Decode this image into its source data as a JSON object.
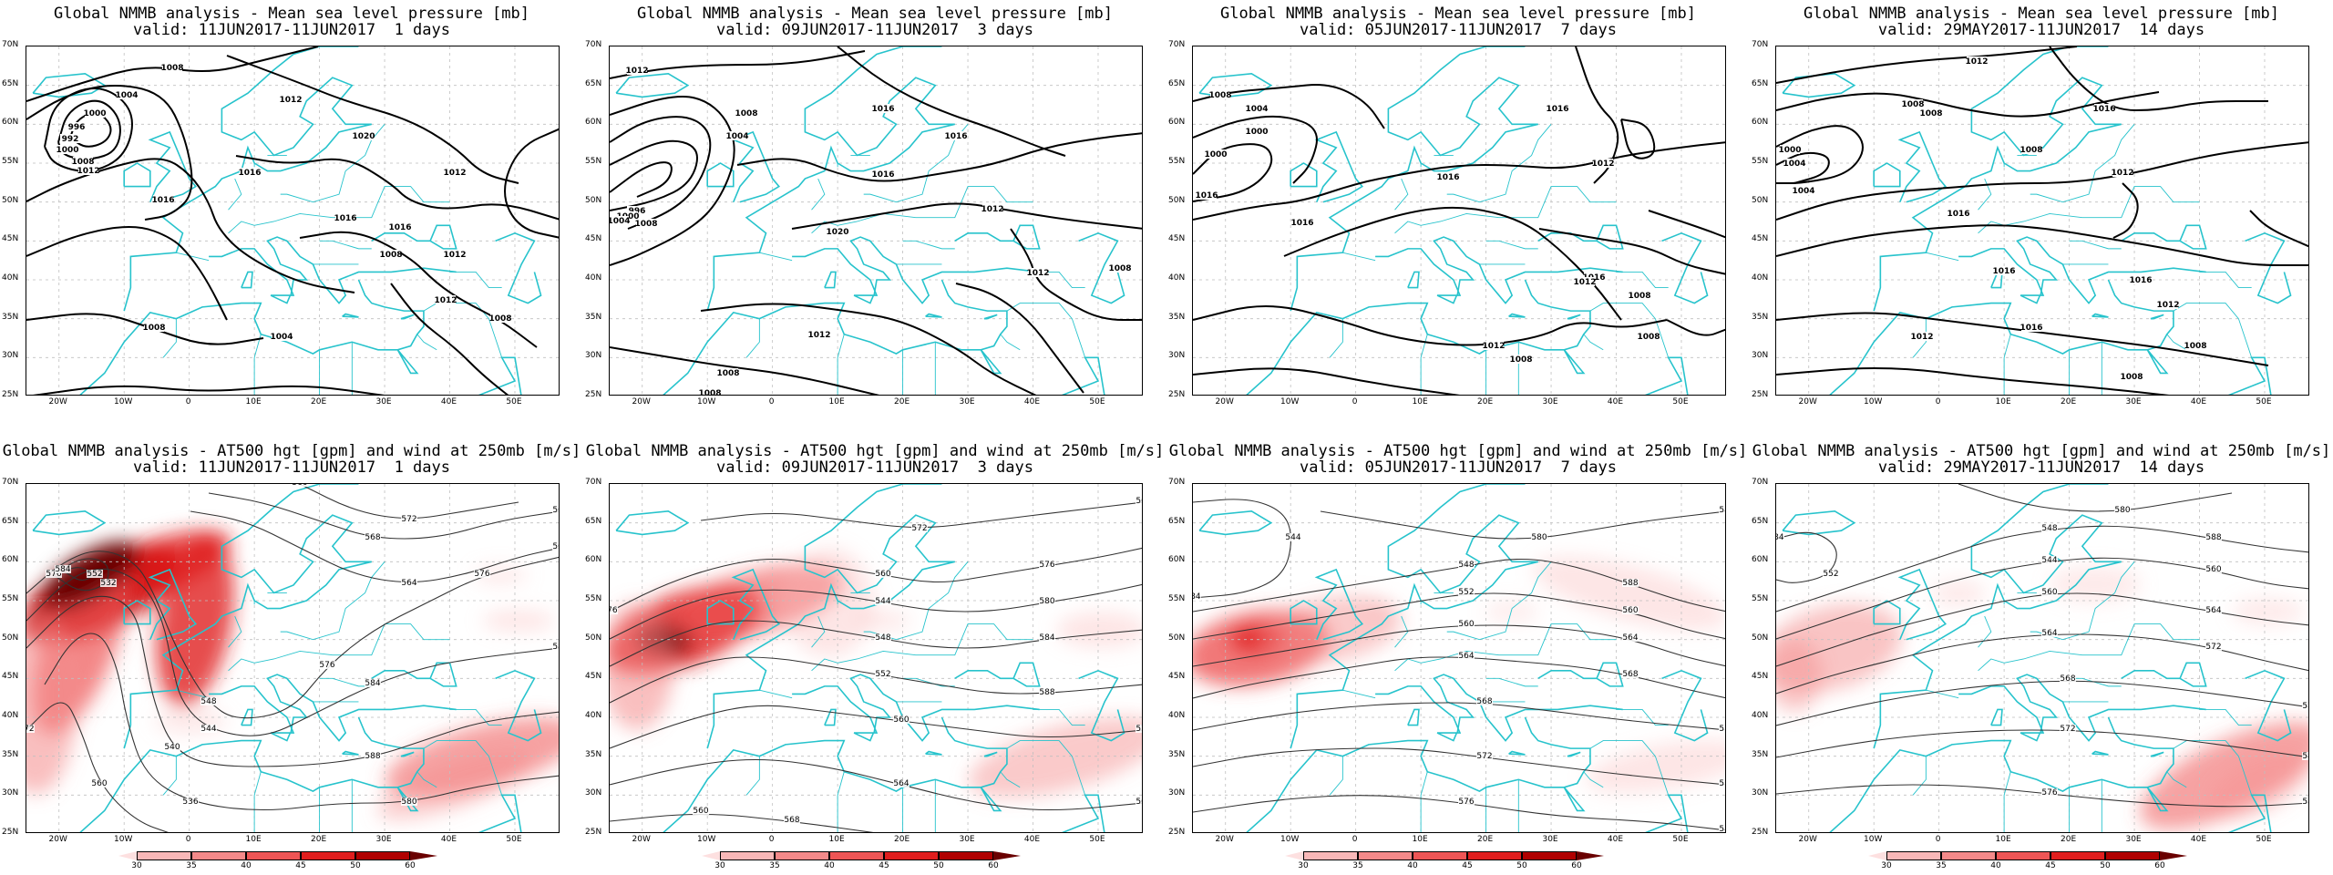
{
  "panels": [
    {
      "id": "mslp_1d",
      "title": "Global NMMB analysis - Mean sea level pressure [mb]",
      "valid": "valid: 11JUN2017-11JUN2017  1 days"
    },
    {
      "id": "mslp_3d",
      "title": "Global NMMB analysis - Mean sea level pressure [mb]",
      "valid": "valid: 09JUN2017-11JUN2017  3 days"
    },
    {
      "id": "mslp_7d",
      "title": "Global NMMB analysis - Mean sea level pressure [mb]",
      "valid": "valid: 05JUN2017-11JUN2017  7 days"
    },
    {
      "id": "mslp_14d",
      "title": "Global NMMB analysis - Mean sea level pressure [mb]",
      "valid": "valid: 29MAY2017-11JUN2017  14 days"
    },
    {
      "id": "at500_1d",
      "title": "Global NMMB analysis - AT500 hgt [gpm] and wind at 250mb [m/s]",
      "valid": "valid: 11JUN2017-11JUN2017  1 days"
    },
    {
      "id": "at500_3d",
      "title": "Global NMMB analysis - AT500 hgt [gpm] and wind at 250mb [m/s]",
      "valid": "valid: 09JUN2017-11JUN2017  3 days"
    },
    {
      "id": "at500_7d",
      "title": "Global NMMB analysis - AT500 hgt [gpm] and wind at 250mb [m/s]",
      "valid": "valid: 05JUN2017-11JUN2017  7 days"
    },
    {
      "id": "at500_14d",
      "title": "Global NMMB analysis - AT500 hgt [gpm] and wind at 250mb [m/s]",
      "valid": "valid: 29MAY2017-11JUN2017  14 days"
    }
  ],
  "axes": {
    "lat_labels": [
      "70N",
      "65N",
      "60N",
      "55N",
      "50N",
      "45N",
      "40N",
      "35N",
      "30N",
      "25N"
    ],
    "lon_labels": [
      "20W",
      "10W",
      "0",
      "10E",
      "20E",
      "30E",
      "40E",
      "50E"
    ]
  },
  "colorbar": {
    "labels": [
      "30",
      "35",
      "40",
      "45",
      "50",
      "60"
    ],
    "colors": [
      "#fde0e0",
      "#f9b8b8",
      "#f48a8a",
      "#ee5555",
      "#e01e1e",
      "#b00000",
      "#6a0000"
    ]
  },
  "mslp_contour_labels": [
    [
      "1008",
      "1004",
      "1000",
      "996",
      "992",
      "1000",
      "1008",
      "1012",
      "1016",
      "1012",
      "1016",
      "1020",
      "1016",
      "1016",
      "1012",
      "1012",
      "1008",
      "1012",
      "1004",
      "1008",
      "1008"
    ],
    [
      "1012",
      "1008",
      "1004",
      "996",
      "1000",
      "1004",
      "1008",
      "1016",
      "1020",
      "1016",
      "1016",
      "1012",
      "1012",
      "1012",
      "1008",
      "1008",
      "1008"
    ],
    [
      "1008",
      "1004",
      "1000",
      "1000",
      "1016",
      "1016",
      "1016",
      "1016",
      "1012",
      "1016",
      "1012",
      "1008",
      "1012",
      "1008",
      "1008"
    ],
    [
      "1012",
      "1008",
      "1008",
      "1004",
      "1000",
      "1004",
      "1016",
      "1008",
      "1012",
      "1016",
      "1016",
      "1016",
      "1016",
      "1012",
      "1012",
      "1008",
      "1008",
      "1012"
    ]
  ],
  "at500_contour_labels": [
    [
      "548",
      "544",
      "540",
      "536",
      "532",
      "552",
      "560",
      "564",
      "568",
      "572",
      "576",
      "584",
      "588",
      "580",
      "576",
      "584",
      "572",
      "560",
      "564",
      "560",
      "576",
      "588"
    ],
    [
      "560",
      "544",
      "548",
      "552",
      "560",
      "564",
      "568",
      "572",
      "576",
      "580",
      "584",
      "588",
      "572",
      "568",
      "560",
      "564",
      "576"
    ],
    [
      "544",
      "548",
      "552",
      "560",
      "564",
      "568",
      "572",
      "576",
      "580",
      "584",
      "588",
      "560",
      "564",
      "568",
      "572",
      "576",
      "584",
      "588"
    ],
    [
      "552",
      "548",
      "544",
      "560",
      "564",
      "568",
      "572",
      "576",
      "580",
      "584",
      "588",
      "560",
      "564",
      "572",
      "576",
      "584",
      "588"
    ]
  ]
}
